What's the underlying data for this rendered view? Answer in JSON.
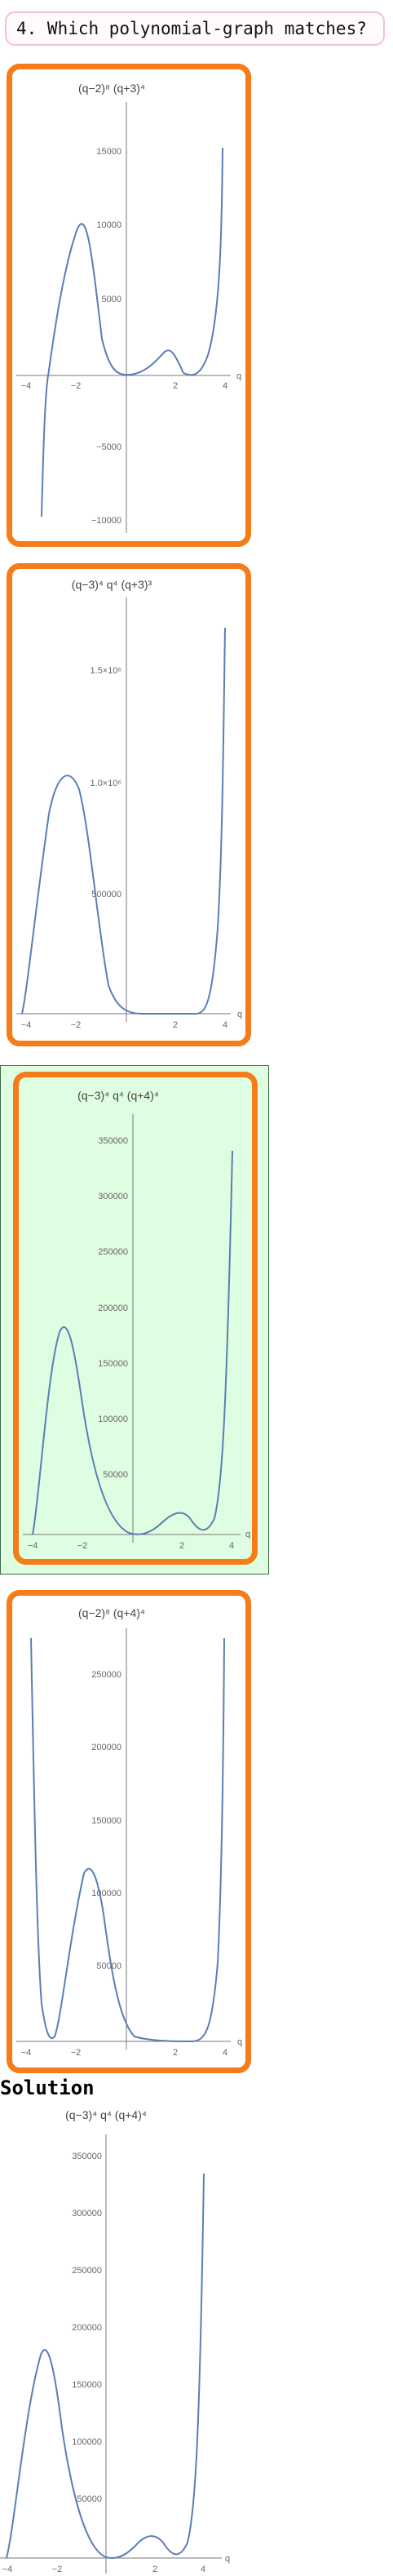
{
  "question": {
    "text": "4. Which polynomial-graph matches?"
  },
  "plots": [
    {
      "id": "option-1",
      "title": "(q−2)⁸ (q+3)⁴",
      "x_label": "q",
      "chart_data": {
        "type": "line",
        "x_ticks": [
          "−4",
          "−2",
          "2",
          "4"
        ],
        "y_ticks": [
          "15000",
          "10000",
          "5000",
          "−5000",
          "−10000"
        ],
        "series": [
          {
            "x": [
              -3.6,
              -3.3,
              -3,
              -2.6,
              -2.2,
              -2,
              -1.8,
              -1.4,
              -1,
              -0.5,
              0,
              0.5,
              1,
              1.5,
              1.8,
              2,
              2.2,
              2.6,
              3,
              3.4,
              3.7,
              4
            ],
            "y": [
              -9000,
              -4000,
              0,
              1500,
              9000,
              10000,
              9800,
              7000,
              3000,
              500,
              0,
              300,
              1500,
              2600,
              2400,
              0,
              80,
              600,
              2000,
              6000,
              10000,
              15000
            ]
          }
        ],
        "xlim": [
          -4.5,
          4.5
        ],
        "ylim": [
          -10500,
          16000
        ]
      }
    },
    {
      "id": "option-2",
      "title": "(q−3)⁴ q⁴ (q+3)³",
      "x_label": "q",
      "chart_data": {
        "type": "line",
        "x_ticks": [
          "−4",
          "−2",
          "2",
          "4"
        ],
        "y_ticks": [
          "1.5×10⁶",
          "1.0×10⁶",
          "500000"
        ],
        "series": [
          {
            "x": [
              -3.8,
              -3.5,
              -3,
              -2.6,
              -2.2,
              -2,
              -1.6,
              -1.2,
              -0.8,
              -0.4,
              0,
              1,
              2,
              2.5,
              3,
              3.4,
              3.7,
              4
            ],
            "y": [
              0,
              50000,
              300000,
              800000,
              1030000,
              1000000,
              750000,
              350000,
              100000,
              10000,
              0,
              5000,
              20000,
              10000,
              0,
              200000,
              700000,
              1650000
            ]
          }
        ],
        "xlim": [
          -4.3,
          4.3
        ],
        "ylim": [
          0,
          1750000
        ]
      }
    },
    {
      "id": "option-3",
      "title": "(q−3)⁴ q⁴ (q+4)⁴",
      "x_label": "q",
      "chart_data": {
        "type": "line",
        "x_ticks": [
          "−4",
          "−2",
          "2",
          "4"
        ],
        "y_ticks": [
          "350000",
          "300000",
          "250000",
          "200000",
          "150000",
          "100000",
          "50000"
        ],
        "series": [
          {
            "x": [
              -4,
              -3.7,
              -3.3,
              -3,
              -2.6,
              -2.3,
              -2,
              -1.6,
              -1.2,
              -0.8,
              -0.4,
              0,
              0.6,
              1.2,
              1.7,
              2.2,
              2.6,
              3,
              3.3,
              3.6,
              3.9
            ],
            "y": [
              0,
              40000,
              130000,
              180000,
              175000,
              140000,
              90000,
              40000,
              12000,
              2000,
              200,
              0,
              4000,
              18000,
              26000,
              18000,
              6000,
              0,
              30000,
              120000,
              345000
            ]
          }
        ],
        "xlim": [
          -4.3,
          4.3
        ],
        "ylim": [
          0,
          380000
        ]
      }
    },
    {
      "id": "option-4",
      "title": "(q−2)⁸ (q+4)⁴",
      "x_label": "q",
      "chart_data": {
        "type": "line",
        "x_ticks": [
          "−4",
          "−2",
          "2",
          "4"
        ],
        "y_ticks": [
          "250000",
          "200000",
          "150000",
          "100000",
          "50000"
        ],
        "series": [
          {
            "x": [
              -3.9,
              -3.6,
              -3.3,
              -3,
              -2.6,
              -2.2,
              -1.8,
              -1.6,
              -1.2,
              -0.8,
              -0.4,
              0,
              0.5,
              1,
              1.5,
              2,
              2.5,
              3,
              3.5,
              3.8,
              4
            ],
            "y": [
              275000,
              120000,
              20000,
              0,
              35000,
              100000,
              117000,
              112000,
              80000,
              40000,
              12000,
              2000,
              500,
              100,
              0,
              0,
              100,
              5000,
              60000,
              180000,
              275000
            ]
          }
        ],
        "xlim": [
          -4.3,
          4.3
        ],
        "ylim": [
          0,
          290000
        ]
      }
    },
    {
      "id": "solution",
      "title": "(q−3)⁴ q⁴ (q+4)⁴",
      "x_label": "q",
      "chart_data": {
        "type": "line",
        "x_ticks": [
          "−4",
          "−2",
          "2",
          "4"
        ],
        "y_ticks": [
          "350000",
          "300000",
          "250000",
          "200000",
          "150000",
          "100000",
          "50000"
        ],
        "series": [
          {
            "x": [
              -4,
              -3.7,
              -3.3,
              -3,
              -2.6,
              -2.3,
              -2,
              -1.6,
              -1.2,
              -0.8,
              -0.4,
              0,
              0.6,
              1.2,
              1.7,
              2.2,
              2.6,
              3,
              3.3,
              3.6,
              3.9
            ],
            "y": [
              0,
              40000,
              130000,
              180000,
              175000,
              140000,
              90000,
              40000,
              12000,
              2000,
              200,
              0,
              4000,
              18000,
              26000,
              18000,
              6000,
              0,
              30000,
              120000,
              345000
            ]
          }
        ],
        "xlim": [
          -4.3,
          4.3
        ],
        "ylim": [
          0,
          380000
        ]
      }
    }
  ],
  "solution": {
    "heading": "Solution"
  }
}
